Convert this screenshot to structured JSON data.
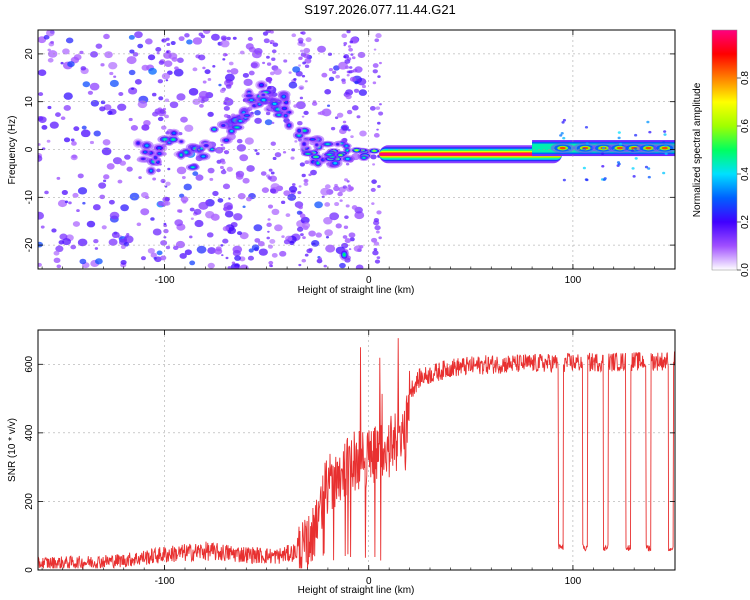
{
  "title": "S197.2026.077.11.44.G21",
  "chart_data": [
    {
      "type": "heatmap",
      "xlabel": "Height of straight line (km)",
      "ylabel": "Frequency (Hz)",
      "xlim": [
        -162,
        150
      ],
      "ylim": [
        -25,
        25
      ],
      "xticks": [
        -100,
        0,
        100
      ],
      "yticks": [
        -20,
        -10,
        0,
        10,
        20
      ],
      "colorbar": {
        "label": "Normalized spectral amplitude",
        "range": [
          0,
          1
        ],
        "ticks": [
          "0.0",
          "0.2",
          "0.4",
          "0.6",
          "0.8"
        ],
        "colors": [
          "#ffffff",
          "#a050ff",
          "#4000ff",
          "#0060ff",
          "#00e0ff",
          "#00ff60",
          "#a0ff00",
          "#ffff00",
          "#ff8000",
          "#ff0000",
          "#ff0080"
        ]
      },
      "features": [
        {
          "name": "carrier-line",
          "x_range": [
            10,
            80
          ],
          "freq_hz": -1.0,
          "amplitude": 1.0
        },
        {
          "name": "carrier-blobs",
          "x": [
            95,
            106,
            115,
            123,
            130,
            137,
            145
          ],
          "freq_hz": 0.3,
          "amplitude": 0.85
        },
        {
          "name": "scatter-arc",
          "x": [
            -115,
            -105,
            -95,
            -85,
            -75,
            -67,
            -60,
            -53,
            -47,
            -42,
            -35,
            -28,
            -20,
            -10
          ],
          "freq_hz": [
            1,
            -3,
            2,
            -2,
            3,
            5,
            9,
            12,
            8,
            10,
            4,
            0,
            -1,
            -1
          ],
          "amplitude": 0.45
        },
        {
          "name": "spur",
          "x": -12,
          "freq_hz": -22,
          "amplitude": 0.5
        }
      ]
    },
    {
      "type": "line",
      "xlabel": "Height of straight line (km)",
      "ylabel": "SNR (10 * v/v)",
      "xlim": [
        -162,
        150
      ],
      "ylim": [
        0,
        700
      ],
      "xticks": [
        -100,
        0,
        100
      ],
      "yticks": [
        0,
        200,
        400,
        600
      ],
      "color": "#e83030",
      "profile": {
        "x": [
          -162,
          -140,
          -120,
          -100,
          -80,
          -60,
          -45,
          -30,
          -20,
          -10,
          0,
          10,
          18,
          20,
          25,
          40,
          60,
          100,
          150
        ],
        "snr": [
          20,
          22,
          28,
          45,
          55,
          45,
          40,
          60,
          250,
          310,
          330,
          360,
          380,
          520,
          560,
          590,
          600,
          605,
          610
        ]
      },
      "dropouts_x": [
        94,
        106,
        116,
        127,
        137,
        148
      ]
    }
  ]
}
